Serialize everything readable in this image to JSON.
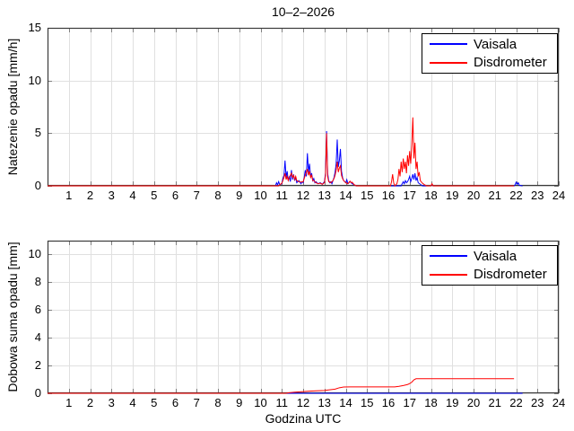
{
  "figure": {
    "background": "#ffffff",
    "title": "10–2–2026"
  },
  "colors": {
    "vaisala": "#0000ff",
    "disdrometer": "#ff0000",
    "grid": "#e0e0e0",
    "axis_box": "#3b3b3b",
    "tick_mark": "#808080",
    "text": "#000000"
  },
  "chart_data": [
    {
      "type": "line",
      "title": "10–2–2026",
      "ylabel": "Natezenie opadu [mm/h]",
      "xlabel": "",
      "xlim": [
        0,
        24
      ],
      "ylim": [
        0,
        15
      ],
      "xticks": [
        1,
        2,
        3,
        4,
        5,
        6,
        7,
        8,
        9,
        10,
        11,
        12,
        13,
        14,
        15,
        16,
        17,
        18,
        19,
        20,
        21,
        22,
        23,
        24
      ],
      "yticks": [
        0,
        5,
        10,
        15
      ],
      "grid": true,
      "legend_position": "top-right",
      "series": [
        {
          "name": "Vaisala",
          "color": "#0000ff",
          "points": [
            [
              0,
              0
            ],
            [
              10.7,
              0
            ],
            [
              10.75,
              0.3
            ],
            [
              10.8,
              0.1
            ],
            [
              10.85,
              0.4
            ],
            [
              10.9,
              0.1
            ],
            [
              11,
              0.2
            ],
            [
              11.05,
              0.7
            ],
            [
              11.1,
              1
            ],
            [
              11.15,
              2.4
            ],
            [
              11.2,
              0.8
            ],
            [
              11.25,
              1.4
            ],
            [
              11.3,
              0.5
            ],
            [
              11.35,
              0.9
            ],
            [
              11.4,
              0.4
            ],
            [
              11.45,
              1.5
            ],
            [
              11.5,
              0.6
            ],
            [
              11.55,
              1.1
            ],
            [
              11.6,
              0.5
            ],
            [
              11.65,
              0.8
            ],
            [
              11.7,
              0.3
            ],
            [
              11.8,
              0.5
            ],
            [
              11.9,
              0.2
            ],
            [
              11.95,
              0.4
            ],
            [
              12,
              0.3
            ],
            [
              12.05,
              0.8
            ],
            [
              12.1,
              1.5
            ],
            [
              12.15,
              0.9
            ],
            [
              12.2,
              3.1
            ],
            [
              12.25,
              1.3
            ],
            [
              12.3,
              2.1
            ],
            [
              12.35,
              0.9
            ],
            [
              12.4,
              1.2
            ],
            [
              12.45,
              0.5
            ],
            [
              12.5,
              0.7
            ],
            [
              12.55,
              0.3
            ],
            [
              12.6,
              0.4
            ],
            [
              12.7,
              0.2
            ],
            [
              12.8,
              0.3
            ],
            [
              12.9,
              0.15
            ],
            [
              13,
              0.4
            ],
            [
              13.05,
              1.2
            ],
            [
              13.1,
              5.2
            ],
            [
              13.15,
              1.2
            ],
            [
              13.2,
              0.5
            ],
            [
              13.25,
              0.3
            ],
            [
              13.3,
              0.4
            ],
            [
              13.35,
              0.2
            ],
            [
              13.4,
              0.5
            ],
            [
              13.45,
              0.8
            ],
            [
              13.5,
              1.3
            ],
            [
              13.55,
              2.1
            ],
            [
              13.6,
              4.4
            ],
            [
              13.65,
              1.8
            ],
            [
              13.7,
              2.4
            ],
            [
              13.75,
              3.5
            ],
            [
              13.8,
              1.4
            ],
            [
              13.85,
              0.8
            ],
            [
              13.9,
              0.5
            ],
            [
              14,
              0.3
            ],
            [
              14.05,
              0.6
            ],
            [
              14.1,
              0.2
            ],
            [
              14.2,
              0.4
            ],
            [
              14.3,
              0.2
            ],
            [
              14.4,
              0.1
            ],
            [
              14.5,
              0
            ],
            [
              16.6,
              0
            ],
            [
              16.65,
              0.2
            ],
            [
              16.7,
              0.4
            ],
            [
              16.75,
              0.2
            ],
            [
              16.8,
              0.5
            ],
            [
              16.85,
              0.3
            ],
            [
              16.9,
              0.4
            ],
            [
              16.95,
              0.6
            ],
            [
              17,
              0.9
            ],
            [
              17.05,
              0.4
            ],
            [
              17.1,
              0.7
            ],
            [
              17.15,
              1.1
            ],
            [
              17.2,
              0.6
            ],
            [
              17.25,
              1.2
            ],
            [
              17.3,
              0.5
            ],
            [
              17.35,
              0.8
            ],
            [
              17.4,
              0.3
            ],
            [
              17.5,
              0.15
            ],
            [
              17.6,
              0
            ],
            [
              18,
              0
            ],
            [
              18.05,
              0.15
            ],
            [
              18.1,
              0
            ],
            [
              21.9,
              0
            ],
            [
              21.95,
              0.1
            ],
            [
              22,
              0.35
            ],
            [
              22.05,
              0.15
            ],
            [
              22.1,
              0.3
            ],
            [
              22.15,
              0.05
            ],
            [
              22.3,
              0
            ]
          ]
        },
        {
          "name": "Disdrometer",
          "color": "#ff0000",
          "points": [
            [
              0,
              0
            ],
            [
              10.85,
              0
            ],
            [
              10.9,
              0.1
            ],
            [
              11,
              0.25
            ],
            [
              11.05,
              0.5
            ],
            [
              11.1,
              0.8
            ],
            [
              11.15,
              1.2
            ],
            [
              11.2,
              0.6
            ],
            [
              11.25,
              0.9
            ],
            [
              11.3,
              0.5
            ],
            [
              11.35,
              0.8
            ],
            [
              11.4,
              1
            ],
            [
              11.45,
              1.2
            ],
            [
              11.5,
              0.8
            ],
            [
              11.55,
              1
            ],
            [
              11.6,
              0.6
            ],
            [
              11.65,
              0.9
            ],
            [
              11.7,
              0.5
            ],
            [
              11.8,
              0.4
            ],
            [
              11.9,
              0.35
            ],
            [
              12,
              0.4
            ],
            [
              12.05,
              0.7
            ],
            [
              12.1,
              1
            ],
            [
              12.15,
              1.3
            ],
            [
              12.2,
              1.6
            ],
            [
              12.25,
              1
            ],
            [
              12.3,
              1.4
            ],
            [
              12.35,
              0.8
            ],
            [
              12.4,
              1
            ],
            [
              12.45,
              0.5
            ],
            [
              12.5,
              0.5
            ],
            [
              12.6,
              0.3
            ],
            [
              12.7,
              0.2
            ],
            [
              12.8,
              0.25
            ],
            [
              12.9,
              0.15
            ],
            [
              13,
              0.3
            ],
            [
              13.05,
              1
            ],
            [
              13.1,
              5
            ],
            [
              13.15,
              0.9
            ],
            [
              13.2,
              0.4
            ],
            [
              13.3,
              0.3
            ],
            [
              13.4,
              0.5
            ],
            [
              13.45,
              0.7
            ],
            [
              13.5,
              1
            ],
            [
              13.55,
              1.5
            ],
            [
              13.6,
              2.3
            ],
            [
              13.65,
              1.3
            ],
            [
              13.7,
              1.7
            ],
            [
              13.75,
              1.9
            ],
            [
              13.8,
              1
            ],
            [
              13.85,
              0.7
            ],
            [
              13.9,
              0.5
            ],
            [
              14,
              0.3
            ],
            [
              14.1,
              0.2
            ],
            [
              14.2,
              0.45
            ],
            [
              14.25,
              0.3
            ],
            [
              14.3,
              0.35
            ],
            [
              14.4,
              0.1
            ],
            [
              14.5,
              0
            ],
            [
              16.1,
              0
            ],
            [
              16.15,
              0.4
            ],
            [
              16.2,
              1.1
            ],
            [
              16.25,
              0.3
            ],
            [
              16.3,
              0
            ],
            [
              16.4,
              0.2
            ],
            [
              16.45,
              0.6
            ],
            [
              16.5,
              1.6
            ],
            [
              16.55,
              0.9
            ],
            [
              16.6,
              2.3
            ],
            [
              16.65,
              1.3
            ],
            [
              16.7,
              2.6
            ],
            [
              16.75,
              1.6
            ],
            [
              16.8,
              2.3
            ],
            [
              16.85,
              1.2
            ],
            [
              16.9,
              2.9
            ],
            [
              16.95,
              1.9
            ],
            [
              17,
              3.3
            ],
            [
              17.05,
              2.1
            ],
            [
              17.1,
              3.9
            ],
            [
              17.15,
              6.5
            ],
            [
              17.2,
              2.6
            ],
            [
              17.25,
              4.1
            ],
            [
              17.3,
              1.6
            ],
            [
              17.35,
              2.3
            ],
            [
              17.4,
              0.9
            ],
            [
              17.45,
              1.3
            ],
            [
              17.5,
              0.5
            ],
            [
              17.6,
              0.25
            ],
            [
              17.7,
              0.1
            ],
            [
              17.8,
              0
            ],
            [
              18,
              0
            ],
            [
              18.05,
              0.2
            ],
            [
              18.1,
              0
            ],
            [
              21.9,
              0
            ]
          ]
        }
      ]
    },
    {
      "type": "line",
      "title": "",
      "ylabel": "Dobowa suma opadu [mm]",
      "xlabel": "Godzina UTC",
      "xlim": [
        0,
        24
      ],
      "ylim": [
        0,
        11
      ],
      "xticks": [
        1,
        2,
        3,
        4,
        5,
        6,
        7,
        8,
        9,
        10,
        11,
        12,
        13,
        14,
        15,
        16,
        17,
        18,
        19,
        20,
        21,
        22,
        23,
        24
      ],
      "yticks": [
        0,
        2,
        4,
        6,
        8,
        10
      ],
      "grid": true,
      "legend_position": "top-right",
      "series": [
        {
          "name": "Vaisala",
          "color": "#0000ff",
          "points": [
            [
              0,
              0
            ],
            [
              22.3,
              0
            ]
          ]
        },
        {
          "name": "Disdrometer",
          "color": "#ff0000",
          "points": [
            [
              0,
              0
            ],
            [
              11.2,
              0
            ],
            [
              11.3,
              0.03
            ],
            [
              11.6,
              0.08
            ],
            [
              12,
              0.12
            ],
            [
              12.3,
              0.15
            ],
            [
              12.6,
              0.18
            ],
            [
              13,
              0.2
            ],
            [
              13.2,
              0.24
            ],
            [
              13.5,
              0.3
            ],
            [
              13.7,
              0.4
            ],
            [
              13.9,
              0.45
            ],
            [
              14.2,
              0.46
            ],
            [
              16.3,
              0.46
            ],
            [
              16.5,
              0.5
            ],
            [
              16.7,
              0.56
            ],
            [
              16.9,
              0.63
            ],
            [
              17,
              0.7
            ],
            [
              17.1,
              0.8
            ],
            [
              17.2,
              0.97
            ],
            [
              17.3,
              1.05
            ],
            [
              21.9,
              1.05
            ]
          ]
        }
      ]
    }
  ]
}
